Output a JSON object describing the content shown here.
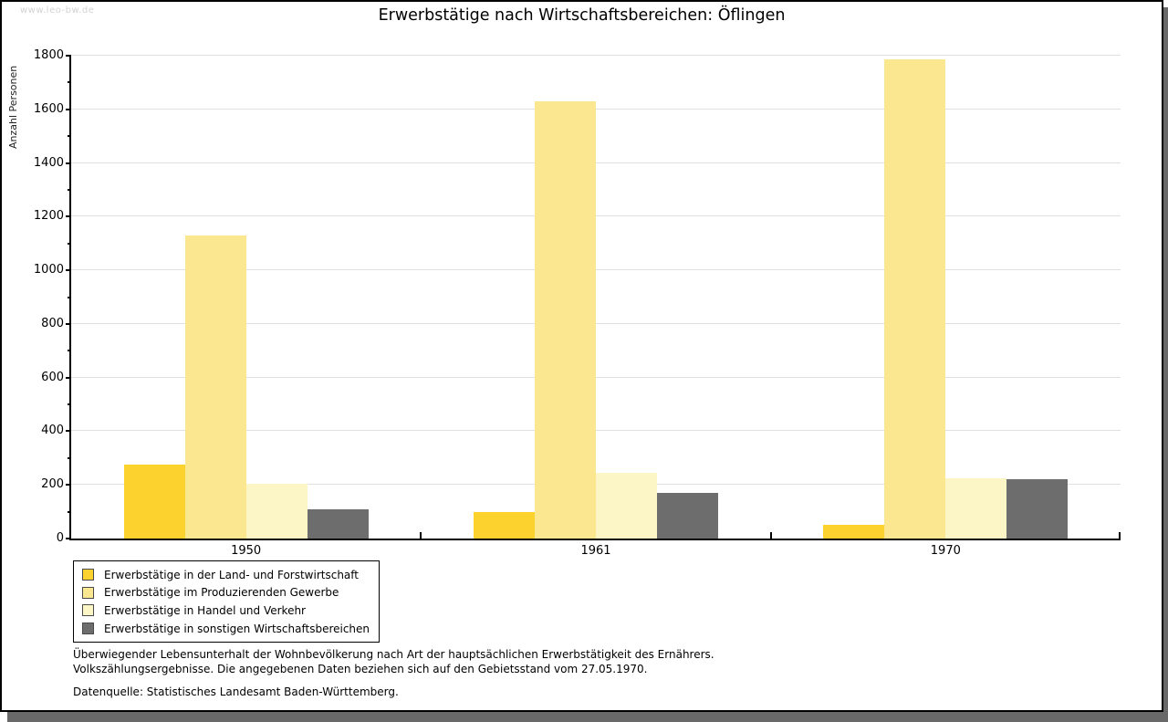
{
  "watermark": "www.leo-bw.de",
  "notes": {
    "line1": "Überwiegender Lebensunterhalt der Wohnbevölkerung nach Art der hauptsächlichen Erwerbstätigkeit des Ernährers.",
    "line2": "Volkszählungsergebnisse. Die angegebenen Daten beziehen sich auf den Gebietsstand vom 27.05.1970.",
    "source": "Datenquelle: Statistisches Landesamt Baden-Württemberg."
  },
  "chart_data": {
    "type": "bar",
    "title": "Erwerbstätige nach Wirtschaftsbereichen: Öflingen",
    "xlabel": "",
    "ylabel": "Anzahl Personen",
    "ylim": [
      0,
      1800
    ],
    "ytick_step": 200,
    "yminor_step": 100,
    "yticks": [
      0,
      200,
      400,
      600,
      800,
      1000,
      1200,
      1400,
      1600,
      1800
    ],
    "grid": "horizontal",
    "legend_position": "bottom-left",
    "categories": [
      "1950",
      "1961",
      "1970"
    ],
    "series": [
      {
        "name": "Erwerbstätige in der Land- und Forstwirtschaft",
        "color": "#FBD22E",
        "values": [
          275,
          100,
          50
        ]
      },
      {
        "name": "Erwerbstätige im Produzierenden Gewerbe",
        "color": "#FBE78F",
        "values": [
          1130,
          1630,
          1785
        ]
      },
      {
        "name": "Erwerbstätige in Handel und Verkehr",
        "color": "#FCF5C5",
        "values": [
          205,
          245,
          225
        ]
      },
      {
        "name": "Erwerbstätige in sonstigen Wirtschaftsbereichen",
        "color": "#6D6D6D",
        "values": [
          110,
          170,
          220
        ]
      }
    ]
  }
}
